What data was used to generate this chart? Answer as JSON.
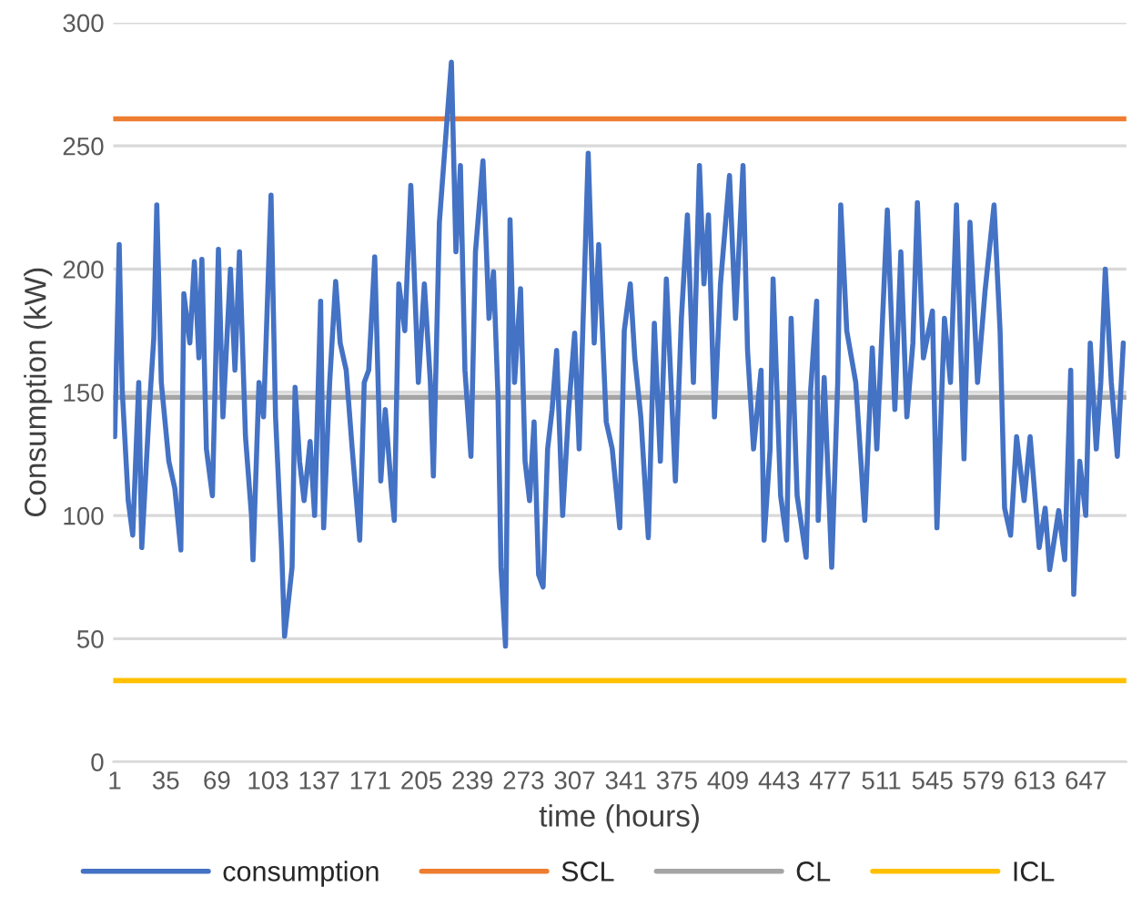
{
  "chart_data": {
    "type": "line",
    "xlabel": "time (hours)",
    "ylabel": "Consumption (kW)",
    "xlim": [
      0,
      674
    ],
    "xticks": [
      1,
      35,
      69,
      103,
      137,
      171,
      205,
      239,
      273,
      307,
      341,
      375,
      409,
      443,
      477,
      511,
      545,
      579,
      613,
      647
    ],
    "ylim": [
      0,
      300
    ],
    "yticks": [
      0,
      50,
      100,
      150,
      200,
      250,
      300
    ],
    "grid": "y",
    "legend": "bottom",
    "marker": "none",
    "line_style": "solid",
    "series": [
      {
        "name": "consumption",
        "color": "#4472c4",
        "x": [
          1,
          4,
          6,
          10,
          13,
          17,
          19,
          24,
          27,
          29,
          32,
          37,
          41,
          45,
          47,
          51,
          54,
          57,
          59,
          62,
          66,
          70,
          73,
          78,
          81,
          84,
          88,
          92,
          93,
          97,
          100,
          105,
          108,
          112,
          114,
          119,
          121,
          124,
          127,
          131,
          134,
          138,
          140,
          144,
          148,
          151,
          155,
          159,
          164,
          167,
          170,
          174,
          178,
          181,
          185,
          187,
          190,
          194,
          198,
          203,
          207,
          211,
          213,
          217,
          222,
          225,
          228,
          231,
          234,
          238,
          241,
          246,
          250,
          253,
          256,
          258,
          261,
          264,
          267,
          271,
          274,
          277,
          280,
          283,
          286,
          289,
          292,
          295,
          299,
          303,
          307,
          310,
          316,
          320,
          323,
          328,
          332,
          337,
          340,
          344,
          347,
          351,
          356,
          360,
          364,
          368,
          374,
          378,
          382,
          386,
          390,
          393,
          396,
          400,
          404,
          410,
          414,
          419,
          422,
          426,
          431,
          433,
          437,
          439,
          444,
          448,
          451,
          455,
          461,
          464,
          468,
          469,
          473,
          478,
          482,
          484,
          488,
          494,
          500,
          505,
          508,
          515,
          520,
          524,
          528,
          532,
          535,
          539,
          545,
          548,
          553,
          557,
          561,
          566,
          570,
          575,
          580,
          586,
          590,
          593,
          597,
          601,
          606,
          610,
          616,
          620,
          623,
          629,
          633,
          637,
          639,
          643,
          647,
          650,
          654,
          657,
          660,
          664,
          668,
          672
        ],
        "values": [
          132,
          210,
          151,
          106,
          92,
          154,
          87,
          143,
          172,
          226,
          154,
          122,
          111,
          86,
          190,
          170,
          203,
          164,
          204,
          127,
          108,
          208,
          140,
          200,
          159,
          207,
          132,
          100,
          82,
          154,
          140,
          230,
          140,
          87,
          51,
          79,
          152,
          122,
          106,
          130,
          100,
          187,
          95,
          154,
          195,
          170,
          159,
          127,
          90,
          154,
          159,
          205,
          114,
          143,
          111,
          98,
          194,
          175,
          234,
          154,
          194,
          154,
          116,
          219,
          260,
          284,
          207,
          242,
          159,
          124,
          207,
          244,
          180,
          199,
          148,
          79,
          47,
          220,
          154,
          192,
          122,
          106,
          138,
          76,
          71,
          127,
          143,
          167,
          100,
          143,
          174,
          127,
          247,
          170,
          210,
          138,
          127,
          95,
          175,
          194,
          164,
          140,
          91,
          178,
          122,
          196,
          114,
          180,
          222,
          154,
          242,
          194,
          222,
          140,
          194,
          238,
          180,
          242,
          167,
          127,
          159,
          90,
          127,
          196,
          108,
          90,
          180,
          108,
          83,
          151,
          187,
          98,
          156,
          79,
          154,
          226,
          175,
          154,
          98,
          168,
          127,
          224,
          143,
          207,
          140,
          170,
          227,
          164,
          183,
          95,
          180,
          154,
          226,
          123,
          219,
          154,
          191,
          226,
          175,
          103,
          92,
          132,
          106,
          132,
          87,
          103,
          78,
          102,
          82,
          159,
          68,
          122,
          100,
          170,
          127,
          154,
          200,
          154,
          124,
          170
        ]
      }
    ],
    "ref_lines": [
      {
        "axis": "y",
        "value": 261,
        "label": "SCL",
        "color": "#ed7d31"
      },
      {
        "axis": "y",
        "value": 148,
        "label": "CL",
        "color": "#a5a5a5"
      },
      {
        "axis": "y",
        "value": 33,
        "label": "ICL",
        "color": "#ffc000"
      }
    ]
  }
}
